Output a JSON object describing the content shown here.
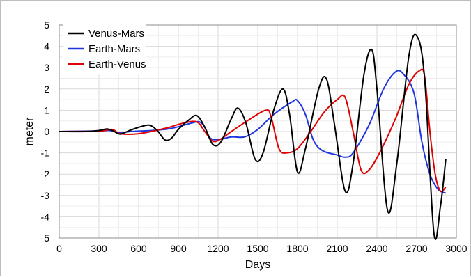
{
  "chart_data": {
    "type": "line",
    "xlabel": "Days",
    "ylabel": "meter",
    "xlim": [
      0,
      3000
    ],
    "ylim": [
      -5,
      5
    ],
    "x_ticks": [
      "0",
      "300",
      "600",
      "900",
      "1200",
      "1500",
      "1800",
      "2100",
      "2400",
      "2700",
      "3000"
    ],
    "y_ticks": [
      "5",
      "4",
      "3",
      "2",
      "1",
      "0",
      "-1",
      "-2",
      "-3",
      "-4",
      "-5"
    ],
    "x_tick_values": [
      0,
      300,
      600,
      900,
      1200,
      1500,
      1800,
      2100,
      2400,
      2700,
      3000
    ],
    "y_tick_values": [
      5,
      4,
      3,
      2,
      1,
      0,
      -1,
      -2,
      -3,
      -4,
      -5
    ],
    "grid": true,
    "legend_position": "top-left",
    "series": [
      {
        "name": "Venus-Mars",
        "color": "#000000",
        "points": [
          [
            0,
            0
          ],
          [
            200,
            0
          ],
          [
            300,
            0.05
          ],
          [
            360,
            0.12
          ],
          [
            400,
            0.05
          ],
          [
            460,
            -0.12
          ],
          [
            520,
            0.02
          ],
          [
            600,
            0.2
          ],
          [
            680,
            0.3
          ],
          [
            740,
            0.05
          ],
          [
            800,
            -0.4
          ],
          [
            850,
            -0.3
          ],
          [
            900,
            0.1
          ],
          [
            980,
            0.55
          ],
          [
            1040,
            0.75
          ],
          [
            1100,
            0.2
          ],
          [
            1160,
            -0.6
          ],
          [
            1220,
            -0.5
          ],
          [
            1300,
            0.6
          ],
          [
            1350,
            1.1
          ],
          [
            1410,
            0.4
          ],
          [
            1480,
            -1.3
          ],
          [
            1540,
            -1.0
          ],
          [
            1620,
            1.0
          ],
          [
            1690,
            2.0
          ],
          [
            1740,
            0.8
          ],
          [
            1800,
            -1.9
          ],
          [
            1860,
            -0.8
          ],
          [
            1960,
            2.0
          ],
          [
            2020,
            2.45
          ],
          [
            2080,
            0.3
          ],
          [
            2160,
            -2.8
          ],
          [
            2220,
            -1.5
          ],
          [
            2300,
            2.6
          ],
          [
            2360,
            3.85
          ],
          [
            2400,
            2.0
          ],
          [
            2480,
            -3.7
          ],
          [
            2550,
            -1.5
          ],
          [
            2640,
            3.5
          ],
          [
            2700,
            4.5
          ],
          [
            2760,
            2.5
          ],
          [
            2830,
            -4.75
          ],
          [
            2880,
            -3.5
          ],
          [
            2920,
            -1.3
          ]
        ]
      },
      {
        "name": "Earth-Mars",
        "color": "#1f35e0",
        "points": [
          [
            0,
            0
          ],
          [
            300,
            0.03
          ],
          [
            380,
            0.05
          ],
          [
            460,
            -0.05
          ],
          [
            540,
            0.0
          ],
          [
            700,
            0.05
          ],
          [
            850,
            0.15
          ],
          [
            1000,
            0.4
          ],
          [
            1060,
            0.45
          ],
          [
            1100,
            0.2
          ],
          [
            1140,
            -0.3
          ],
          [
            1200,
            -0.38
          ],
          [
            1300,
            -0.25
          ],
          [
            1400,
            -0.25
          ],
          [
            1500,
            0.1
          ],
          [
            1620,
            0.8
          ],
          [
            1760,
            1.4
          ],
          [
            1800,
            1.45
          ],
          [
            1860,
            0.8
          ],
          [
            1920,
            -0.4
          ],
          [
            1990,
            -0.9
          ],
          [
            2100,
            -1.1
          ],
          [
            2160,
            -1.2
          ],
          [
            2220,
            -1.0
          ],
          [
            2340,
            0.3
          ],
          [
            2450,
            2.0
          ],
          [
            2540,
            2.8
          ],
          [
            2600,
            2.7
          ],
          [
            2680,
            1.8
          ],
          [
            2740,
            -0.5
          ],
          [
            2800,
            -2.0
          ],
          [
            2860,
            -2.7
          ],
          [
            2920,
            -2.9
          ]
        ]
      },
      {
        "name": "Earth-Venus",
        "color": "#e00000",
        "points": [
          [
            0,
            0
          ],
          [
            300,
            0.02
          ],
          [
            400,
            0.1
          ],
          [
            460,
            -0.1
          ],
          [
            600,
            -0.1
          ],
          [
            800,
            0.15
          ],
          [
            940,
            0.4
          ],
          [
            1040,
            0.45
          ],
          [
            1100,
            0.0
          ],
          [
            1160,
            -0.45
          ],
          [
            1220,
            -0.35
          ],
          [
            1300,
            0.0
          ],
          [
            1420,
            0.5
          ],
          [
            1560,
            1.0
          ],
          [
            1600,
            0.7
          ],
          [
            1660,
            -0.8
          ],
          [
            1720,
            -1.0
          ],
          [
            1800,
            -0.8
          ],
          [
            1900,
            0.0
          ],
          [
            2000,
            0.9
          ],
          [
            2100,
            1.5
          ],
          [
            2160,
            1.6
          ],
          [
            2220,
            0.0
          ],
          [
            2280,
            -1.8
          ],
          [
            2340,
            -1.8
          ],
          [
            2420,
            -1.0
          ],
          [
            2540,
            0.6
          ],
          [
            2640,
            2.2
          ],
          [
            2720,
            2.85
          ],
          [
            2760,
            2.6
          ],
          [
            2800,
            0.0
          ],
          [
            2840,
            -2.0
          ],
          [
            2880,
            -2.8
          ],
          [
            2920,
            -2.6
          ]
        ]
      }
    ]
  }
}
